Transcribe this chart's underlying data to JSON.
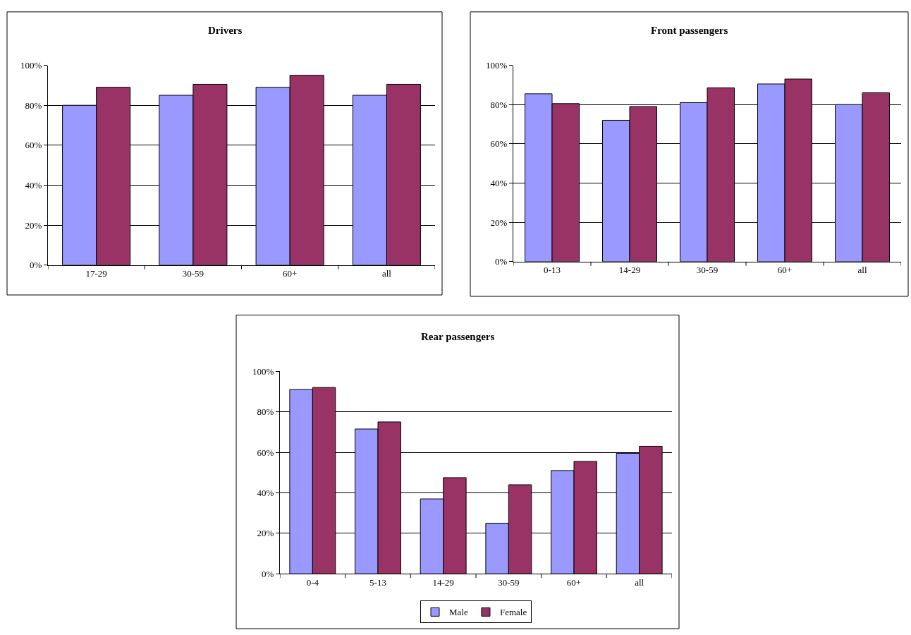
{
  "chart_data": [
    {
      "type": "bar",
      "title": "Drivers",
      "categories": [
        "17-29",
        "30-59",
        "60+",
        "all"
      ],
      "series": [
        {
          "color": "#9999ff",
          "values": [
            80,
            85,
            89,
            85
          ]
        },
        {
          "color": "#993366",
          "values": [
            89,
            90.5,
            95,
            90.5
          ]
        }
      ],
      "ylim": [
        0,
        100
      ],
      "yticks": [
        {
          "value": 0,
          "label": "0%"
        },
        {
          "value": 20,
          "label": "20%"
        },
        {
          "value": 40,
          "label": "40%"
        },
        {
          "value": 60,
          "label": "60%"
        },
        {
          "value": 80,
          "label": "80%"
        },
        {
          "value": 100,
          "label": "100%"
        }
      ],
      "grid": "y",
      "legend": false
    },
    {
      "type": "bar",
      "title": "Front passengers",
      "categories": [
        "0-13",
        "14-29",
        "30-59",
        "60+",
        "all"
      ],
      "series": [
        {
          "color": "#9999ff",
          "values": [
            85.5,
            72,
            81,
            90.5,
            80
          ]
        },
        {
          "color": "#993366",
          "values": [
            80.5,
            79,
            88.5,
            93,
            86
          ]
        }
      ],
      "ylim": [
        0,
        100
      ],
      "yticks": [
        {
          "value": 0,
          "label": "0%"
        },
        {
          "value": 20,
          "label": "20%"
        },
        {
          "value": 40,
          "label": "40%"
        },
        {
          "value": 60,
          "label": "60%"
        },
        {
          "value": 80,
          "label": "80%"
        },
        {
          "value": 100,
          "label": "100%"
        }
      ],
      "grid": "y",
      "legend": false
    },
    {
      "type": "bar",
      "title": "Rear passengers",
      "categories": [
        "0-4",
        "5-13",
        "14-29",
        "30-59",
        "60+",
        "all"
      ],
      "series": [
        {
          "name": "Male",
          "color": "#9999ff",
          "values": [
            91,
            71.5,
            37,
            25,
            51,
            59.5
          ]
        },
        {
          "name": "Female",
          "color": "#993366",
          "values": [
            92,
            75,
            47.5,
            44,
            55.5,
            63
          ]
        }
      ],
      "ylim": [
        0,
        100
      ],
      "yticks": [
        {
          "value": 0,
          "label": "0%"
        },
        {
          "value": 20,
          "label": "20%"
        },
        {
          "value": 40,
          "label": "40%"
        },
        {
          "value": 60,
          "label": "60%"
        },
        {
          "value": 80,
          "label": "80%"
        },
        {
          "value": 100,
          "label": "100%"
        }
      ],
      "grid": "y",
      "legend": "bottom"
    }
  ]
}
